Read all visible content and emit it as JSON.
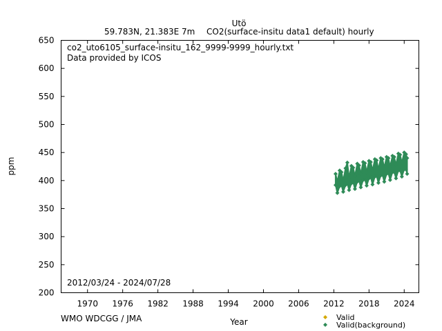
{
  "header": {
    "station": "Utö",
    "location": "59.783N, 21.383E 7m",
    "gas_line": "CO2(surface-insitu data1 default) hourly"
  },
  "annotations": {
    "filename": "co2_uto6105_surface-insitu_162_9999-9999_hourly.txt",
    "provider": "Data provided by ICOS",
    "date_range": "2012/03/24 - 2024/07/28",
    "credit": "WMO WDCGG / JMA"
  },
  "colors": {
    "valid": "#d4a800",
    "background": "#2e8b57",
    "credit": "#aaaaaa"
  },
  "chart_data": {
    "type": "scatter",
    "xlabel": "Year",
    "ylabel": "ppm",
    "xlim": [
      1965.5,
      2026.5
    ],
    "ylim": [
      200,
      650
    ],
    "x_ticks": [
      1970,
      1976,
      1982,
      1988,
      1994,
      2000,
      2006,
      2012,
      2018,
      2024
    ],
    "y_ticks": [
      200,
      250,
      300,
      350,
      400,
      450,
      500,
      550,
      600,
      650
    ],
    "grid": false,
    "legend_position": "bottom-right",
    "series": [
      {
        "name": "Valid",
        "marker": "diamond",
        "x": [],
        "y": []
      },
      {
        "name": "Valid(background)",
        "marker": "diamond",
        "x": [
          2012.3,
          2012.6,
          2013.0,
          2013.3,
          2013.6,
          2014.0,
          2014.3,
          2014.6,
          2015.0,
          2015.3,
          2015.6,
          2016.0,
          2016.3,
          2016.6,
          2017.0,
          2017.3,
          2017.6,
          2018.0,
          2018.3,
          2018.6,
          2019.0,
          2019.3,
          2019.6,
          2020.0,
          2020.3,
          2020.6,
          2021.0,
          2021.3,
          2021.6,
          2022.0,
          2022.3,
          2022.6,
          2023.0,
          2023.3,
          2023.6,
          2024.0,
          2024.3,
          2024.5
        ],
        "y_high": [
          412,
          398,
          418,
          415,
          400,
          422,
          432,
          405,
          426,
          423,
          408,
          430,
          427,
          412,
          433,
          431,
          415,
          435,
          433,
          418,
          438,
          436,
          420,
          440,
          438,
          423,
          442,
          440,
          425,
          444,
          442,
          428,
          448,
          446,
          432,
          450,
          447,
          440
        ],
        "y_low": [
          392,
          378,
          390,
          392,
          380,
          392,
          395,
          383,
          395,
          397,
          385,
          398,
          400,
          388,
          401,
          402,
          391,
          404,
          406,
          393,
          407,
          408,
          396,
          409,
          410,
          398,
          412,
          413,
          401,
          415,
          415,
          404,
          418,
          418,
          407,
          420,
          420,
          412
        ]
      }
    ]
  }
}
